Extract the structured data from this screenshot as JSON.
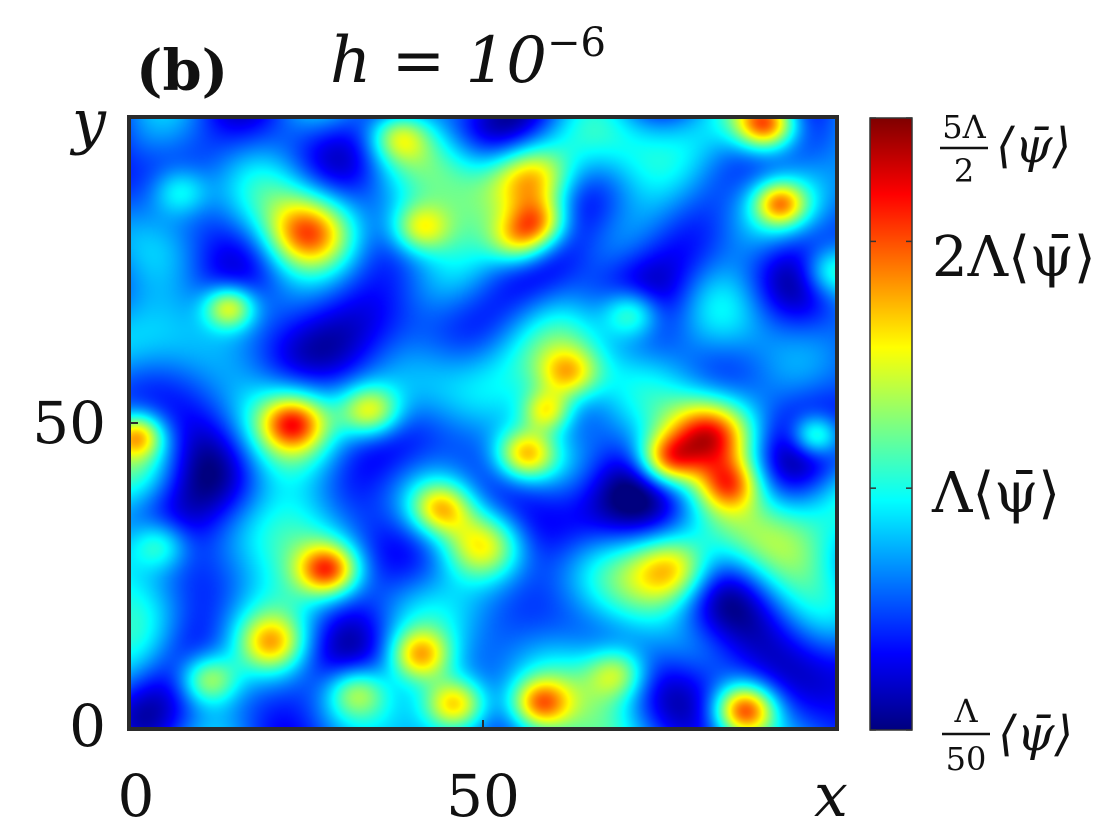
{
  "chart_data": {
    "type": "heatmap",
    "panel_label": "(b)",
    "title": {
      "lhs": "h = 10",
      "exponent": "−6"
    },
    "xlabel": "x",
    "ylabel": "y",
    "xlim": [
      0,
      100
    ],
    "ylim": [
      0,
      100
    ],
    "x_ticks": [
      {
        "value": 0,
        "label": "0"
      },
      {
        "value": 50,
        "label": "50"
      }
    ],
    "y_ticks": [
      {
        "value": 0,
        "label": "0"
      },
      {
        "value": 50,
        "label": "50"
      }
    ],
    "colormap": "jet",
    "colormap_stops": [
      "#00007f",
      "#0000ff",
      "#007fff",
      "#00ffff",
      "#7fff7f",
      "#ffff00",
      "#ff7f00",
      "#ff0000",
      "#7f0000"
    ],
    "colorbar": {
      "range_in_units_of_Lambda_mean_psi": [
        0.02,
        2.5
      ],
      "tick_values": [
        0.02,
        1,
        2,
        2.5
      ],
      "labels": {
        "top": {
          "coef_num": "5Λ",
          "coef_den": "2",
          "rest": "⟨ψ̄⟩"
        },
        "two": "2Λ⟨ψ̄⟩",
        "one": "Λ⟨ψ̄⟩",
        "bottom": {
          "coef_num": "Λ",
          "coef_den": "50",
          "rest": "⟨ψ̄⟩"
        }
      }
    },
    "field_blobs": [
      {
        "x": 28,
        "y": 26,
        "amp": 2.2,
        "s": 3
      },
      {
        "x": 41,
        "y": 12,
        "amp": 1.8,
        "s": 3
      },
      {
        "x": 11,
        "y": 8,
        "amp": 1.7,
        "s": 3
      },
      {
        "x": 46,
        "y": 4,
        "amp": 1.9,
        "s": 3
      },
      {
        "x": 58,
        "y": 4,
        "amp": 2.1,
        "s": 3
      },
      {
        "x": 87,
        "y": 3,
        "amp": 2.6,
        "s": 3
      },
      {
        "x": 69,
        "y": 9,
        "amp": 1.4,
        "s": 3
      },
      {
        "x": 50,
        "y": 30,
        "amp": 2.0,
        "s": 4
      },
      {
        "x": 44,
        "y": 36,
        "amp": 1.6,
        "s": 3
      },
      {
        "x": 77,
        "y": 26,
        "amp": 2.0,
        "s": 4
      },
      {
        "x": 82,
        "y": 48,
        "amp": 2.0,
        "s": 4
      },
      {
        "x": 76,
        "y": 44,
        "amp": 2.1,
        "s": 3
      },
      {
        "x": 85,
        "y": 40,
        "amp": 1.6,
        "s": 3
      },
      {
        "x": 56,
        "y": 45,
        "amp": 2.0,
        "s": 3
      },
      {
        "x": 59,
        "y": 52,
        "amp": 1.6,
        "s": 2.5
      },
      {
        "x": 23,
        "y": 50,
        "amp": 1.6,
        "s": 3
      },
      {
        "x": 34,
        "y": 52,
        "amp": 1.7,
        "s": 3
      },
      {
        "x": 25,
        "y": 81,
        "amp": 1.8,
        "s": 4
      },
      {
        "x": 14,
        "y": 69,
        "amp": 1.7,
        "s": 2.5
      },
      {
        "x": 41,
        "y": 82,
        "amp": 1.6,
        "s": 3
      },
      {
        "x": 57,
        "y": 90,
        "amp": 2.0,
        "s": 4
      },
      {
        "x": 58,
        "y": 83,
        "amp": 1.9,
        "s": 3
      },
      {
        "x": 55,
        "y": 80,
        "amp": 1.5,
        "s": 3
      },
      {
        "x": 90,
        "y": 99,
        "amp": 2.6,
        "s": 3
      },
      {
        "x": 71,
        "y": 68,
        "amp": 1.6,
        "s": 3
      },
      {
        "x": 92,
        "y": 86,
        "amp": 1.7,
        "s": 2.5
      },
      {
        "x": 1,
        "y": 48,
        "amp": 1.6,
        "s": 2.5
      },
      {
        "x": 38,
        "y": 97,
        "amp": 1.4,
        "s": 3
      },
      {
        "x": 62,
        "y": 58,
        "amp": 1.5,
        "s": 3
      },
      {
        "x": 4,
        "y": 30,
        "amp": 1.2,
        "s": 3
      },
      {
        "x": 32,
        "y": 6,
        "amp": 1.3,
        "s": 3
      },
      {
        "x": 20,
        "y": 14,
        "amp": 1.2,
        "s": 3
      },
      {
        "x": 97,
        "y": 48,
        "amp": 1.6,
        "s": 2.5
      },
      {
        "x": 99,
        "y": 75,
        "amp": 1.2,
        "s": 3
      },
      {
        "x": 7,
        "y": 88,
        "amp": 1.1,
        "s": 3
      }
    ]
  }
}
